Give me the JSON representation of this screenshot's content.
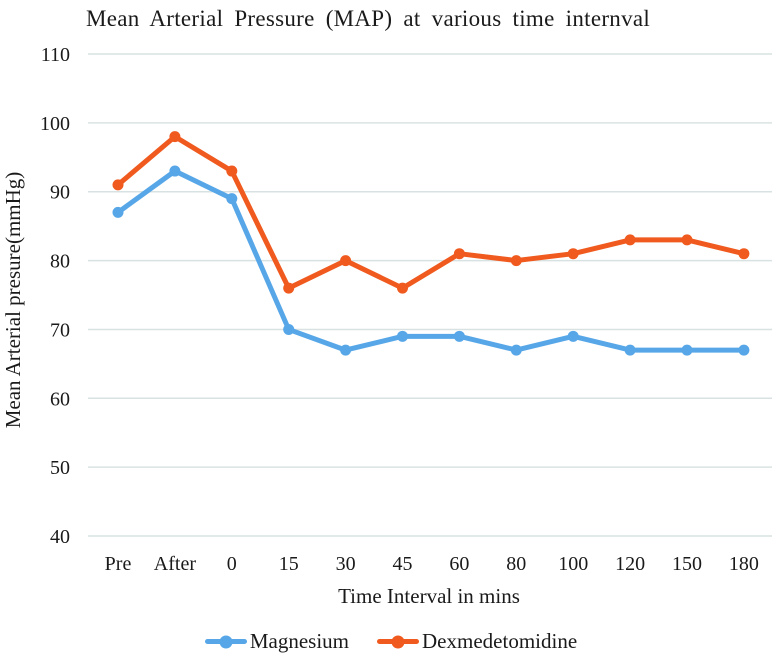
{
  "chart_data": {
    "type": "line",
    "title": "Mean Arterial Pressure (MAP) at various time internval",
    "xlabel": "Time Interval in mins",
    "ylabel": "Mean Arterial presure(mmHg)",
    "categories": [
      "Pre",
      "After",
      "0",
      "15",
      "30",
      "45",
      "60",
      "80",
      "100",
      "120",
      "150",
      "180"
    ],
    "y_ticks": [
      110,
      100,
      90,
      80,
      70,
      60,
      50,
      40
    ],
    "ylim": [
      40,
      110
    ],
    "grid": true,
    "legend_position": "bottom",
    "series": [
      {
        "name": "Magnesium",
        "color": "#57A7E8",
        "values": [
          87,
          93,
          89,
          70,
          67,
          69,
          69,
          67,
          69,
          67,
          67,
          67
        ]
      },
      {
        "name": "Dexmedetomidine",
        "color": "#F05A1E",
        "values": [
          91,
          98,
          93,
          76,
          80,
          76,
          81,
          80,
          81,
          83,
          83,
          81
        ]
      }
    ],
    "colors": {
      "gridline": "#D9E2E2",
      "text": "#1A1A1A",
      "background": "#FFFFFF"
    }
  }
}
